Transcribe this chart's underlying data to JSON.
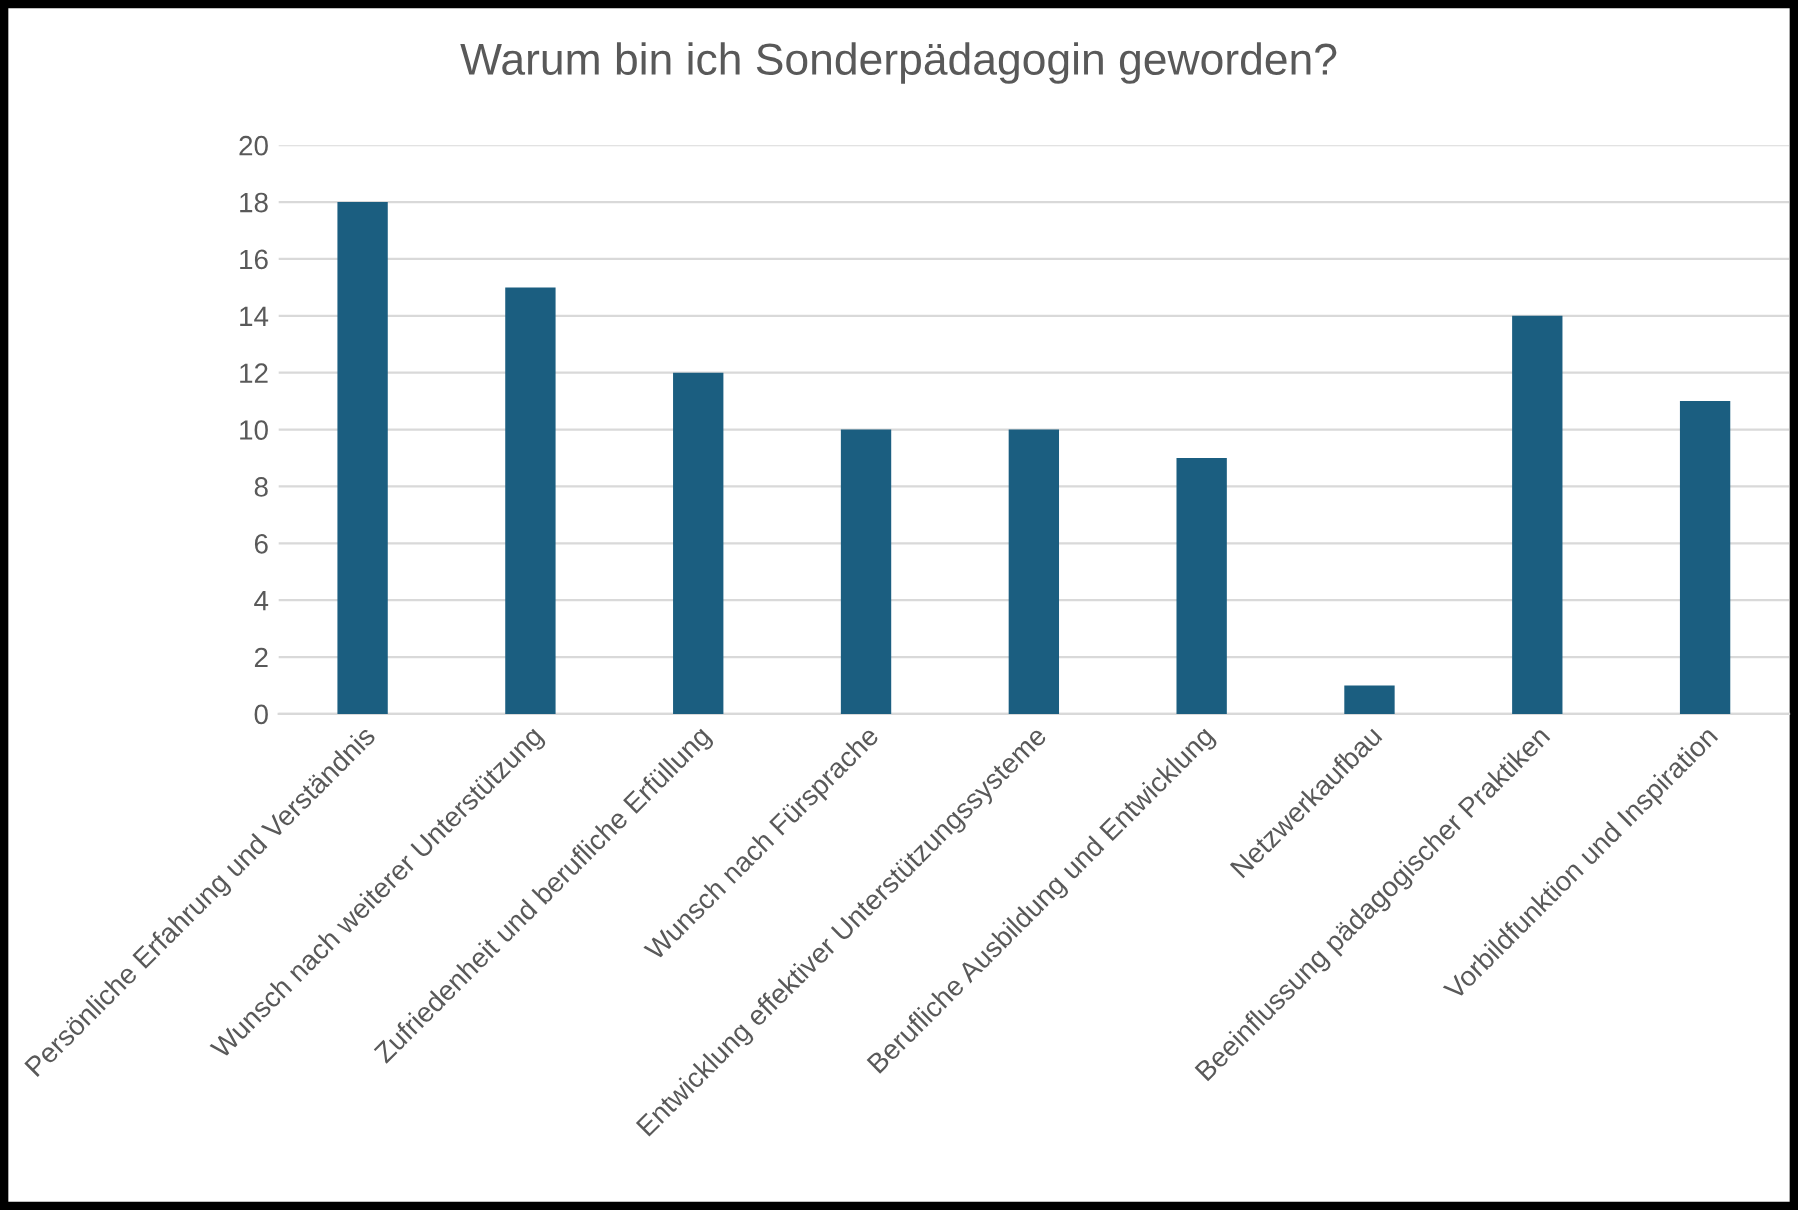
{
  "chart_data": {
    "type": "bar",
    "title": "Warum bin ich Sonderpädagogin geworden?",
    "categories": [
      "Persönliche Erfahrung und Verständnis",
      "Wunsch nach weiterer Unterstützung",
      "Zufriedenheit und berufliche Erfüllung",
      "Wunsch nach Fürsprache",
      "Entwicklung effektiver Unterstützungssysteme",
      "Berufliche Ausbildung und Entwicklung",
      "Netzwerkaufbau",
      "Beeinflussung pädagogischer Praktiken",
      "Vorbildfunktion und Inspiration"
    ],
    "values": [
      18,
      15,
      12,
      10,
      10,
      9,
      1,
      14,
      11
    ],
    "color": "#1b5e80",
    "ylim": [
      0,
      20
    ],
    "yticks": [
      0,
      2,
      4,
      6,
      8,
      10,
      12,
      14,
      16,
      18,
      20
    ],
    "grid": "y"
  }
}
